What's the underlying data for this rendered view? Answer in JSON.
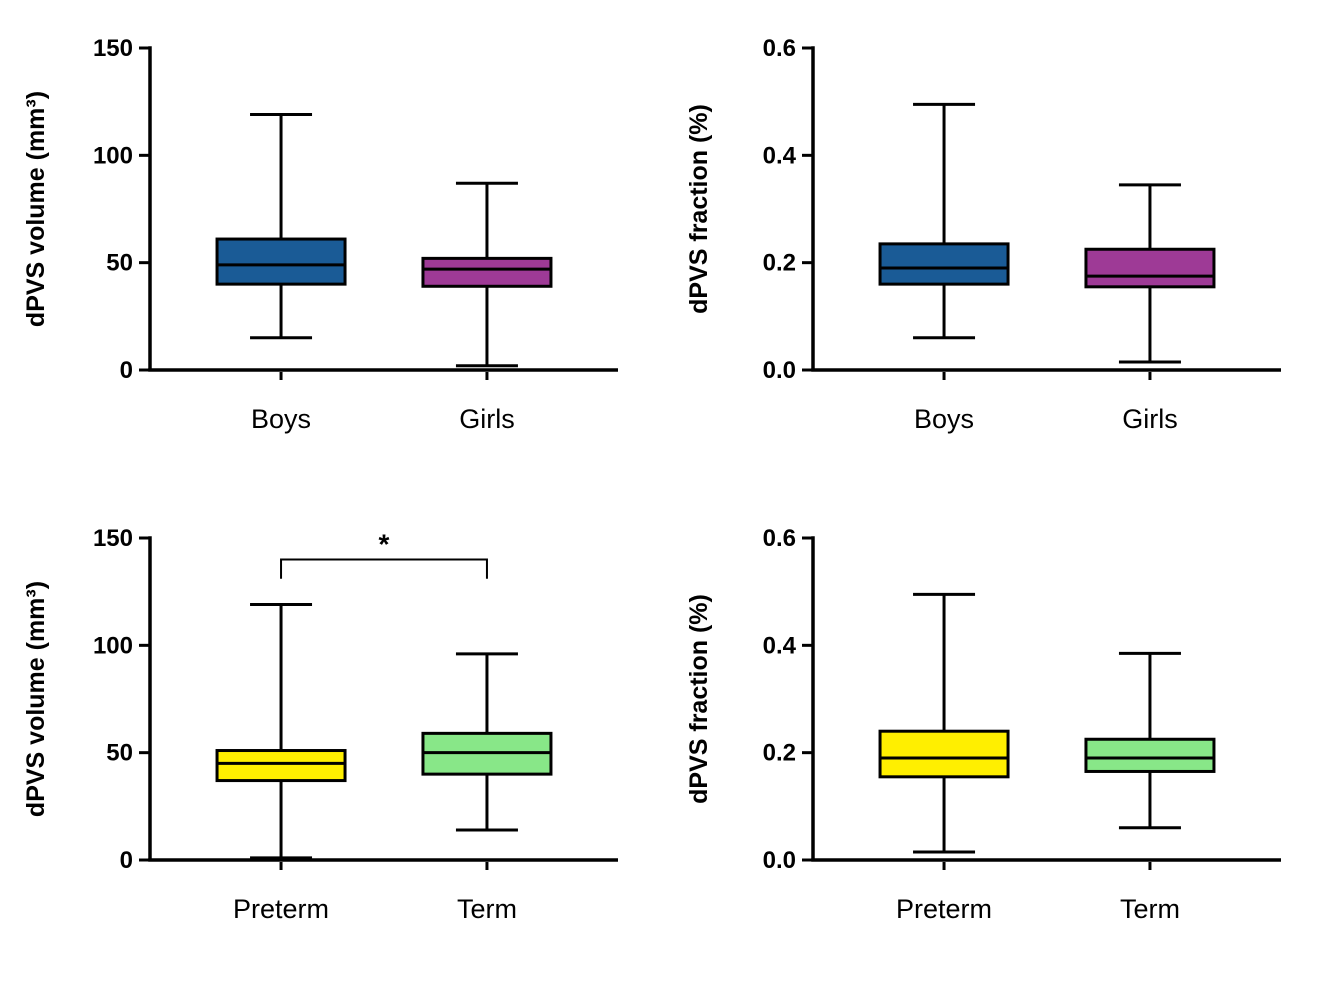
{
  "figure": {
    "background": "#ffffff",
    "axis_color": "#000000",
    "layout": "2x2 grid of box plots"
  },
  "chart_data": [
    {
      "type": "box",
      "name": "dpvs-volume-by-sex",
      "title": "",
      "ylabel": "dPVS volume (mm³)",
      "xlabel": "",
      "ylim": [
        0,
        150
      ],
      "yticks": [
        {
          "value": 0,
          "label": "0"
        },
        {
          "value": 50,
          "label": "50"
        },
        {
          "value": 100,
          "label": "100"
        },
        {
          "value": 150,
          "label": "150"
        }
      ],
      "categories": [
        "Boys",
        "Girls"
      ],
      "boxes": [
        {
          "label": "Boys",
          "color": "#1a5b96",
          "whisker_low": 15,
          "q1": 40,
          "median": 49,
          "q3": 61,
          "whisker_high": 119
        },
        {
          "label": "Girls",
          "color": "#9e3a96",
          "whisker_low": 2,
          "q1": 39,
          "median": 47,
          "q3": 52,
          "whisker_high": 87
        }
      ]
    },
    {
      "type": "box",
      "name": "dpvs-fraction-by-sex",
      "title": "",
      "ylabel": "dPVS fraction (%)",
      "xlabel": "",
      "ylim": [
        0,
        0.6
      ],
      "yticks": [
        {
          "value": 0,
          "label": "0.0"
        },
        {
          "value": 0.2,
          "label": "0.2"
        },
        {
          "value": 0.4,
          "label": "0.4"
        },
        {
          "value": 0.6,
          "label": "0.6"
        }
      ],
      "categories": [
        "Boys",
        "Girls"
      ],
      "boxes": [
        {
          "label": "Boys",
          "color": "#1a5b96",
          "whisker_low": 0.06,
          "q1": 0.16,
          "median": 0.19,
          "q3": 0.235,
          "whisker_high": 0.495
        },
        {
          "label": "Girls",
          "color": "#9e3a96",
          "whisker_low": 0.015,
          "q1": 0.155,
          "median": 0.175,
          "q3": 0.225,
          "whisker_high": 0.345
        }
      ]
    },
    {
      "type": "box",
      "name": "dpvs-volume-by-term",
      "title": "",
      "ylabel": "dPVS volume (mm³)",
      "xlabel": "",
      "ylim": [
        0,
        150
      ],
      "yticks": [
        {
          "value": 0,
          "label": "0"
        },
        {
          "value": 50,
          "label": "50"
        },
        {
          "value": 100,
          "label": "100"
        },
        {
          "value": 150,
          "label": "150"
        }
      ],
      "categories": [
        "Preterm",
        "Term"
      ],
      "boxes": [
        {
          "label": "Preterm",
          "color": "#ffef00",
          "whisker_low": 1,
          "q1": 37,
          "median": 45,
          "q3": 51,
          "whisker_high": 119
        },
        {
          "label": "Term",
          "color": "#88e788",
          "whisker_low": 14,
          "q1": 40,
          "median": 50,
          "q3": 59,
          "whisker_high": 96
        }
      ],
      "annotation": {
        "type": "bracket",
        "from": 0,
        "to": 1,
        "y": 140,
        "drop": 9,
        "label": "*"
      }
    },
    {
      "type": "box",
      "name": "dpvs-fraction-by-term",
      "title": "",
      "ylabel": "dPVS fraction (%)",
      "xlabel": "",
      "ylim": [
        0,
        0.6
      ],
      "yticks": [
        {
          "value": 0,
          "label": "0.0"
        },
        {
          "value": 0.2,
          "label": "0.2"
        },
        {
          "value": 0.4,
          "label": "0.4"
        },
        {
          "value": 0.6,
          "label": "0.6"
        }
      ],
      "categories": [
        "Preterm",
        "Term"
      ],
      "boxes": [
        {
          "label": "Preterm",
          "color": "#ffef00",
          "whisker_low": 0.015,
          "q1": 0.155,
          "median": 0.19,
          "q3": 0.24,
          "whisker_high": 0.495
        },
        {
          "label": "Term",
          "color": "#88e788",
          "whisker_low": 0.06,
          "q1": 0.165,
          "median": 0.19,
          "q3": 0.225,
          "whisker_high": 0.385
        }
      ]
    }
  ]
}
